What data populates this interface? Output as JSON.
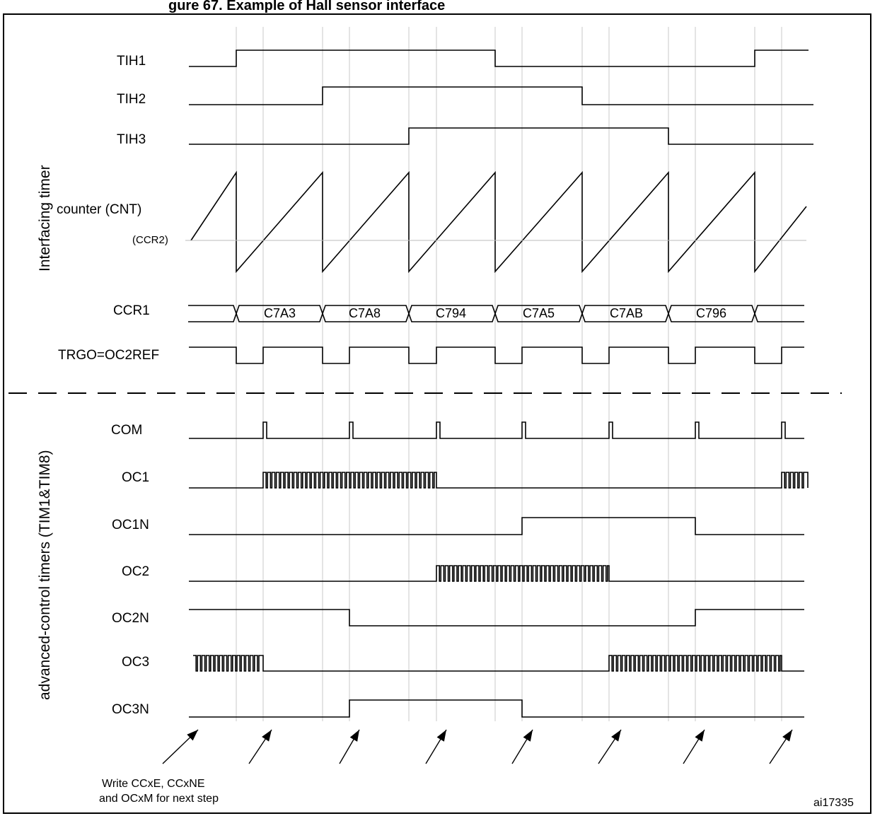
{
  "header": {
    "title_fragment": "gure 67. Example of Hall sensor interface"
  },
  "side_labels": {
    "top": "Interfacing timer",
    "bottom": "advanced-control timers (TIM1&TIM8)"
  },
  "signals": {
    "tih1": "TIH1",
    "tih2": "TIH2",
    "tih3": "TIH3",
    "counter": "counter (CNT)",
    "ccr2": "(CCR2)",
    "ccr1": "CCR1",
    "trgo": "TRGO=OC2REF",
    "com": "COM",
    "oc1": "OC1",
    "oc1n": "OC1N",
    "oc2": "OC2",
    "oc2n": "OC2N",
    "oc3": "OC3",
    "oc3n": "OC3N"
  },
  "ccr1_values": [
    "C7A3",
    "C7A8",
    "C794",
    "C7A5",
    "C7AB",
    "C796"
  ],
  "note": {
    "line1": "Write CCxE, CCxNE",
    "line2": "and OCxM for next step"
  },
  "figure_id": "ai17335"
}
